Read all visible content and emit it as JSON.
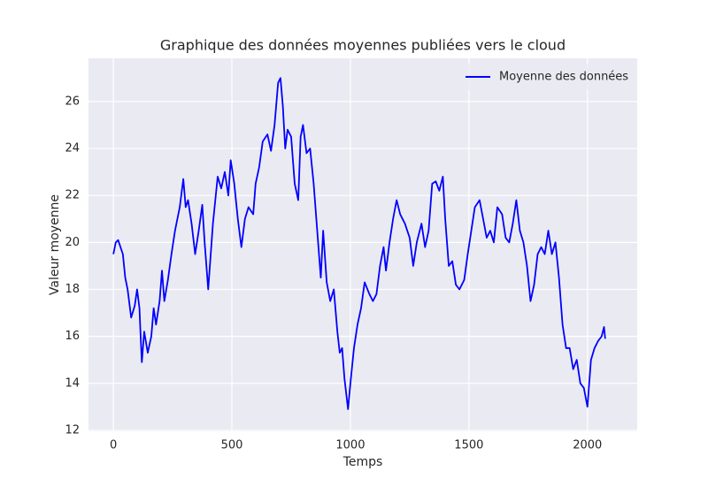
{
  "chart_data": {
    "type": "line",
    "title": "Graphique des données moyennes publiées vers le cloud",
    "x_label": "Temps",
    "y_label": "Valeur moyenne",
    "x": [
      0,
      10,
      20,
      40,
      50,
      60,
      75,
      90,
      100,
      110,
      115,
      120,
      130,
      145,
      160,
      170,
      180,
      195,
      205,
      215,
      230,
      245,
      260,
      280,
      295,
      305,
      315,
      330,
      345,
      360,
      375,
      385,
      400,
      420,
      440,
      455,
      470,
      485,
      495,
      510,
      525,
      540,
      555,
      570,
      590,
      600,
      615,
      630,
      650,
      665,
      680,
      695,
      705,
      715,
      725,
      735,
      750,
      765,
      780,
      790,
      800,
      815,
      830,
      845,
      860,
      875,
      885,
      900,
      915,
      930,
      945,
      955,
      965,
      975,
      990,
      1000,
      1015,
      1030,
      1045,
      1060,
      1080,
      1095,
      1110,
      1125,
      1140,
      1150,
      1165,
      1180,
      1195,
      1210,
      1230,
      1250,
      1265,
      1280,
      1300,
      1315,
      1330,
      1345,
      1360,
      1375,
      1390,
      1400,
      1415,
      1430,
      1445,
      1460,
      1480,
      1495,
      1510,
      1525,
      1545,
      1560,
      1575,
      1590,
      1605,
      1620,
      1640,
      1655,
      1670,
      1685,
      1700,
      1715,
      1730,
      1745,
      1760,
      1775,
      1790,
      1805,
      1820,
      1835,
      1850,
      1865,
      1880,
      1895,
      1910,
      1925,
      1940,
      1955,
      1970,
      1985,
      2000,
      2015,
      2030,
      2045,
      2060,
      2070,
      2075
    ],
    "series": [
      {
        "name": "Moyenne des données",
        "color": "#0000ff",
        "values": [
          19.5,
          20.0,
          20.1,
          19.5,
          18.5,
          18.0,
          16.8,
          17.3,
          18.0,
          17.2,
          16.0,
          14.9,
          16.2,
          15.3,
          16.0,
          17.2,
          16.5,
          17.5,
          18.8,
          17.5,
          18.4,
          19.5,
          20.5,
          21.5,
          22.7,
          21.5,
          21.8,
          20.8,
          19.5,
          20.5,
          21.6,
          20.0,
          18.0,
          20.8,
          22.8,
          22.3,
          23.0,
          22.0,
          23.5,
          22.5,
          21.0,
          19.8,
          21.0,
          21.5,
          21.2,
          22.5,
          23.2,
          24.3,
          24.6,
          23.9,
          25.0,
          26.8,
          27.0,
          25.8,
          24.0,
          24.8,
          24.5,
          22.5,
          21.8,
          24.5,
          25.0,
          23.8,
          24.0,
          22.5,
          20.5,
          18.5,
          20.5,
          18.3,
          17.5,
          18.0,
          16.2,
          15.3,
          15.5,
          14.2,
          12.9,
          14.0,
          15.5,
          16.5,
          17.2,
          18.3,
          17.8,
          17.5,
          17.8,
          19.0,
          19.8,
          18.8,
          20.0,
          21.0,
          21.8,
          21.2,
          20.8,
          20.2,
          19.0,
          20.0,
          20.8,
          19.8,
          20.5,
          22.5,
          22.6,
          22.2,
          22.8,
          21.0,
          19.0,
          19.2,
          18.2,
          18.0,
          18.4,
          19.5,
          20.5,
          21.5,
          21.8,
          21.0,
          20.2,
          20.5,
          20.0,
          21.5,
          21.2,
          20.2,
          20.0,
          20.8,
          21.8,
          20.5,
          20.0,
          19.0,
          17.5,
          18.2,
          19.5,
          19.8,
          19.5,
          20.5,
          19.5,
          20.0,
          18.5,
          16.5,
          15.5,
          15.5,
          14.6,
          15.0,
          14.0,
          13.8,
          13.0,
          15.0,
          15.5,
          15.8,
          16.0,
          16.4,
          15.9
        ]
      }
    ],
    "xlim": [
      -105,
      2210
    ],
    "ylim": [
      11.96,
      27.84
    ],
    "xticks": [
      0,
      500,
      1000,
      1500,
      2000
    ],
    "yticks": [
      12,
      14,
      16,
      18,
      20,
      22,
      24,
      26
    ],
    "grid": true,
    "legend": "upper right"
  }
}
